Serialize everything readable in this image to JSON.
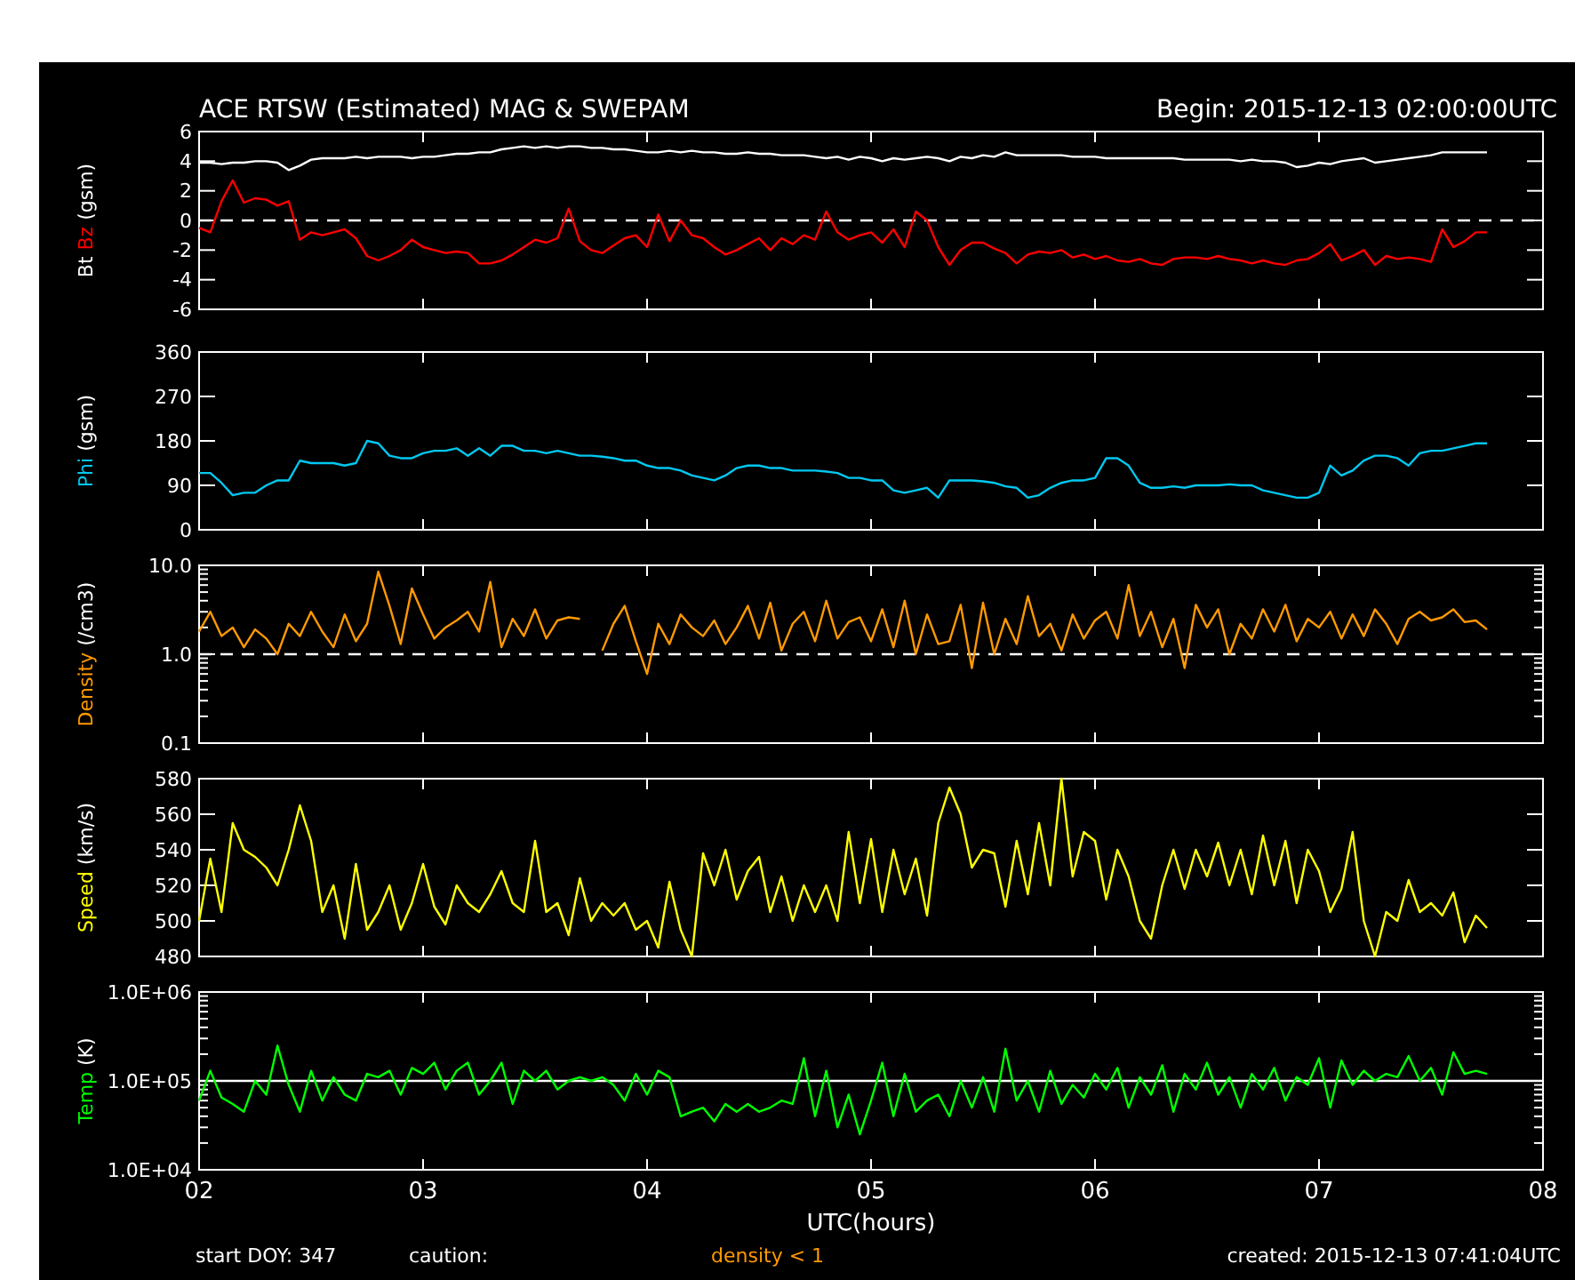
{
  "chart_data": [
    {
      "type": "line",
      "title": "ACE RTSW (Estimated) MAG & SWEPAM",
      "subtitle": "Begin: 2015-12-13 02:00:00UTC",
      "ylabel": "(gsm)",
      "tick_labels": "y",
      "x": [
        2,
        2.05,
        2.1,
        2.15,
        2.2,
        2.25,
        2.3,
        2.35,
        2.4,
        2.45,
        2.5,
        2.55,
        2.6,
        2.65,
        2.7,
        2.75,
        2.8,
        2.85,
        2.9,
        2.95,
        3,
        3.05,
        3.1,
        3.15,
        3.2,
        3.25,
        3.3,
        3.35,
        3.4,
        3.45,
        3.5,
        3.55,
        3.6,
        3.65,
        3.7,
        3.75,
        3.8,
        3.85,
        3.9,
        3.95,
        4,
        4.05,
        4.1,
        4.15,
        4.2,
        4.25,
        4.3,
        4.35,
        4.4,
        4.45,
        4.5,
        4.55,
        4.6,
        4.65,
        4.7,
        4.75,
        4.8,
        4.85,
        4.9,
        4.95,
        5,
        5.05,
        5.1,
        5.15,
        5.2,
        5.25,
        5.3,
        5.35,
        5.4,
        5.45,
        5.5,
        5.55,
        5.6,
        5.65,
        5.7,
        5.75,
        5.8,
        5.85,
        5.9,
        5.95,
        6,
        6.05,
        6.1,
        6.15,
        6.2,
        6.25,
        6.3,
        6.35,
        6.4,
        6.45,
        6.5,
        6.55,
        6.6,
        6.65,
        6.7,
        6.75,
        6.8,
        6.85,
        6.9,
        6.95,
        7,
        7.05,
        7.1,
        7.15,
        7.2,
        7.25,
        7.3,
        7.35,
        7.4,
        7.45,
        7.5,
        7.55,
        7.6,
        7.65,
        7.7,
        7.75
      ],
      "xlim": [
        2,
        8
      ],
      "xticks": [
        {
          "value": 2,
          "label": null
        },
        {
          "value": 3,
          "label": null
        },
        {
          "value": 4,
          "label": null
        },
        {
          "value": 5,
          "label": null
        },
        {
          "value": 6,
          "label": null
        },
        {
          "value": 7,
          "label": null
        },
        {
          "value": 8,
          "label": null
        }
      ],
      "ylim": [
        -6,
        6
      ],
      "yticks": [
        -6,
        -4,
        -2,
        0,
        2,
        4,
        6
      ],
      "ref_lines": [
        {
          "axis": "y",
          "value": 0,
          "line_style": "dashed",
          "color": "#ffffff"
        }
      ],
      "series": [
        {
          "name": "Bt",
          "color": "#ffffff",
          "values": [
            3.9,
            3.9,
            3.8,
            3.9,
            3.9,
            4.0,
            4.0,
            3.9,
            3.4,
            3.7,
            4.1,
            4.2,
            4.2,
            4.2,
            4.3,
            4.2,
            4.3,
            4.3,
            4.3,
            4.2,
            4.3,
            4.3,
            4.4,
            4.5,
            4.5,
            4.6,
            4.6,
            4.8,
            4.9,
            5.0,
            4.9,
            5.0,
            4.9,
            5.0,
            5.0,
            4.9,
            4.9,
            4.8,
            4.8,
            4.7,
            4.6,
            4.6,
            4.7,
            4.6,
            4.7,
            4.6,
            4.6,
            4.5,
            4.5,
            4.6,
            4.5,
            4.5,
            4.4,
            4.4,
            4.4,
            4.3,
            4.2,
            4.3,
            4.1,
            4.3,
            4.2,
            4.0,
            4.2,
            4.1,
            4.2,
            4.3,
            4.2,
            4.0,
            4.3,
            4.2,
            4.4,
            4.3,
            4.6,
            4.4,
            4.4,
            4.4,
            4.4,
            4.4,
            4.3,
            4.3,
            4.3,
            4.2,
            4.2,
            4.2,
            4.2,
            4.2,
            4.2,
            4.2,
            4.1,
            4.1,
            4.1,
            4.1,
            4.1,
            4.0,
            4.1,
            4.0,
            4.0,
            3.9,
            3.6,
            3.7,
            3.9,
            3.8,
            4.0,
            4.1,
            4.2,
            3.9,
            4.0,
            4.1,
            4.2,
            4.3,
            4.4,
            4.6,
            4.6,
            4.6,
            4.6,
            4.6
          ]
        },
        {
          "name": "Bz",
          "color": "#ff0000",
          "values": [
            -0.5,
            -0.8,
            1.3,
            2.7,
            1.2,
            1.5,
            1.4,
            1.0,
            1.3,
            -1.3,
            -0.8,
            -1.0,
            -0.8,
            -0.6,
            -1.2,
            -2.4,
            -2.7,
            -2.4,
            -2.0,
            -1.3,
            -1.8,
            -2.0,
            -2.2,
            -2.1,
            -2.2,
            -2.9,
            -2.9,
            -2.7,
            -2.3,
            -1.8,
            -1.3,
            -1.5,
            -1.2,
            0.8,
            -1.4,
            -2.0,
            -2.2,
            -1.7,
            -1.2,
            -1.0,
            -1.8,
            0.4,
            -1.4,
            0.0,
            -1.0,
            -1.2,
            -1.8,
            -2.3,
            -2.0,
            -1.6,
            -1.2,
            -2.0,
            -1.2,
            -1.6,
            -1.0,
            -1.3,
            0.6,
            -0.8,
            -1.3,
            -1.0,
            -0.8,
            -1.5,
            -0.6,
            -1.8,
            0.6,
            0.0,
            -1.8,
            -3.0,
            -2.0,
            -1.5,
            -1.5,
            -1.9,
            -2.2,
            -2.9,
            -2.3,
            -2.1,
            -2.2,
            -2.0,
            -2.5,
            -2.3,
            -2.6,
            -2.4,
            -2.7,
            -2.8,
            -2.6,
            -2.9,
            -3.0,
            -2.6,
            -2.5,
            -2.5,
            -2.6,
            -2.4,
            -2.6,
            -2.7,
            -2.9,
            -2.7,
            -2.9,
            -3.0,
            -2.7,
            -2.6,
            -2.2,
            -1.6,
            -2.7,
            -2.4,
            -2.0,
            -3.0,
            -2.4,
            -2.6,
            -2.5,
            -2.6,
            -2.8,
            -0.6,
            -1.8,
            -1.4,
            -0.8,
            -0.8
          ]
        }
      ]
    },
    {
      "type": "line",
      "ylabel": "(gsm)",
      "tick_labels": "y",
      "x": [
        2,
        2.05,
        2.1,
        2.15,
        2.2,
        2.25,
        2.3,
        2.35,
        2.4,
        2.45,
        2.5,
        2.55,
        2.6,
        2.65,
        2.7,
        2.75,
        2.8,
        2.85,
        2.9,
        2.95,
        3,
        3.05,
        3.1,
        3.15,
        3.2,
        3.25,
        3.3,
        3.35,
        3.4,
        3.45,
        3.5,
        3.55,
        3.6,
        3.65,
        3.7,
        3.75,
        3.8,
        3.85,
        3.9,
        3.95,
        4,
        4.05,
        4.1,
        4.15,
        4.2,
        4.25,
        4.3,
        4.35,
        4.4,
        4.45,
        4.5,
        4.55,
        4.6,
        4.65,
        4.7,
        4.75,
        4.8,
        4.85,
        4.9,
        4.95,
        5,
        5.05,
        5.1,
        5.15,
        5.2,
        5.25,
        5.3,
        5.35,
        5.4,
        5.45,
        5.5,
        5.55,
        5.6,
        5.65,
        5.7,
        5.75,
        5.8,
        5.85,
        5.9,
        5.95,
        6,
        6.05,
        6.1,
        6.15,
        6.2,
        6.25,
        6.3,
        6.35,
        6.4,
        6.45,
        6.5,
        6.55,
        6.6,
        6.65,
        6.7,
        6.75,
        6.8,
        6.85,
        6.9,
        6.95,
        7,
        7.05,
        7.1,
        7.15,
        7.2,
        7.25,
        7.3,
        7.35,
        7.4,
        7.45,
        7.5,
        7.55,
        7.6,
        7.65,
        7.7,
        7.75
      ],
      "xlim": [
        2,
        8
      ],
      "xticks": [
        {
          "value": 2,
          "label": null
        },
        {
          "value": 3,
          "label": null
        },
        {
          "value": 4,
          "label": null
        },
        {
          "value": 5,
          "label": null
        },
        {
          "value": 6,
          "label": null
        },
        {
          "value": 7,
          "label": null
        },
        {
          "value": 8,
          "label": null
        }
      ],
      "ylim": [
        0,
        360
      ],
      "yticks": [
        0,
        90,
        180,
        270,
        360
      ],
      "series": [
        {
          "name": "Phi",
          "color": "#00c8f0",
          "values": [
            115,
            115,
            95,
            70,
            75,
            75,
            90,
            100,
            100,
            140,
            135,
            135,
            135,
            130,
            135,
            180,
            175,
            150,
            145,
            145,
            155,
            160,
            160,
            165,
            150,
            165,
            150,
            170,
            170,
            160,
            160,
            155,
            160,
            155,
            150,
            150,
            148,
            145,
            140,
            140,
            130,
            125,
            125,
            120,
            110,
            105,
            100,
            110,
            125,
            130,
            130,
            125,
            125,
            120,
            120,
            120,
            118,
            115,
            105,
            105,
            100,
            100,
            80,
            75,
            80,
            85,
            65,
            100,
            100,
            100,
            98,
            95,
            88,
            85,
            65,
            70,
            85,
            95,
            100,
            100,
            105,
            145,
            145,
            130,
            95,
            85,
            85,
            88,
            85,
            90,
            90,
            90,
            92,
            90,
            90,
            80,
            75,
            70,
            65,
            65,
            75,
            130,
            110,
            120,
            140,
            150,
            150,
            145,
            130,
            155,
            160,
            160,
            165,
            170,
            175,
            175
          ]
        }
      ]
    },
    {
      "type": "line",
      "ylabel": "(/cm3)",
      "tick_labels": "y",
      "log": true,
      "x": [
        2,
        2.05,
        2.1,
        2.15,
        2.2,
        2.25,
        2.3,
        2.35,
        2.4,
        2.45,
        2.5,
        2.55,
        2.6,
        2.65,
        2.7,
        2.75,
        2.8,
        2.85,
        2.9,
        2.95,
        3,
        3.05,
        3.1,
        3.15,
        3.2,
        3.25,
        3.3,
        3.35,
        3.4,
        3.45,
        3.5,
        3.55,
        3.6,
        3.65,
        3.7,
        3.75,
        3.8,
        3.85,
        3.9,
        3.95,
        4,
        4.05,
        4.1,
        4.15,
        4.2,
        4.25,
        4.3,
        4.35,
        4.4,
        4.45,
        4.5,
        4.55,
        4.6,
        4.65,
        4.7,
        4.75,
        4.8,
        4.85,
        4.9,
        4.95,
        5,
        5.05,
        5.1,
        5.15,
        5.2,
        5.25,
        5.3,
        5.35,
        5.4,
        5.45,
        5.5,
        5.55,
        5.6,
        5.65,
        5.7,
        5.75,
        5.8,
        5.85,
        5.9,
        5.95,
        6,
        6.05,
        6.1,
        6.15,
        6.2,
        6.25,
        6.3,
        6.35,
        6.4,
        6.45,
        6.5,
        6.55,
        6.6,
        6.65,
        6.7,
        6.75,
        6.8,
        6.85,
        6.9,
        6.95,
        7,
        7.05,
        7.1,
        7.15,
        7.2,
        7.25,
        7.3,
        7.35,
        7.4,
        7.45,
        7.5,
        7.55,
        7.6,
        7.65,
        7.7,
        7.75
      ],
      "xlim": [
        2,
        8
      ],
      "xticks": [
        {
          "value": 2,
          "label": null
        },
        {
          "value": 3,
          "label": null
        },
        {
          "value": 4,
          "label": null
        },
        {
          "value": 5,
          "label": null
        },
        {
          "value": 6,
          "label": null
        },
        {
          "value": 7,
          "label": null
        },
        {
          "value": 8,
          "label": null
        }
      ],
      "ylim": [
        0.1,
        10
      ],
      "yticks": [
        {
          "value": 0.1,
          "label": "0.1"
        },
        {
          "value": 0.2,
          "label": null
        },
        {
          "value": 0.3,
          "label": null
        },
        {
          "value": 0.4,
          "label": null
        },
        {
          "value": 0.5,
          "label": null
        },
        {
          "value": 0.6,
          "label": null
        },
        {
          "value": 0.7,
          "label": null
        },
        {
          "value": 0.8,
          "label": null
        },
        {
          "value": 0.9,
          "label": null
        },
        {
          "value": 1,
          "label": "1.0"
        },
        {
          "value": 2,
          "label": null
        },
        {
          "value": 3,
          "label": null
        },
        {
          "value": 4,
          "label": null
        },
        {
          "value": 5,
          "label": null
        },
        {
          "value": 6,
          "label": null
        },
        {
          "value": 7,
          "label": null
        },
        {
          "value": 8,
          "label": null
        },
        {
          "value": 9,
          "label": null
        },
        {
          "value": 10,
          "label": "10.0"
        }
      ],
      "ref_lines": [
        {
          "axis": "y",
          "value": 1,
          "line_style": "dashed",
          "color": "#ffffff"
        }
      ],
      "series": [
        {
          "name": "Density",
          "color": "#ff9900",
          "values": [
            1.8,
            3.0,
            1.6,
            2.0,
            1.2,
            1.9,
            1.5,
            1.0,
            2.2,
            1.6,
            3.0,
            1.8,
            1.2,
            2.8,
            1.4,
            2.2,
            8.5,
            3.5,
            1.3,
            5.5,
            2.8,
            1.5,
            2.0,
            2.4,
            3.0,
            1.8,
            6.5,
            1.2,
            2.5,
            1.6,
            3.2,
            1.5,
            2.4,
            2.6,
            2.5,
            null,
            1.1,
            2.2,
            3.5,
            1.4,
            0.6,
            2.2,
            1.3,
            2.8,
            2.0,
            1.6,
            2.4,
            1.3,
            2.0,
            3.5,
            1.5,
            3.8,
            1.1,
            2.2,
            3.0,
            1.4,
            4.0,
            1.5,
            2.3,
            2.6,
            1.4,
            3.2,
            1.2,
            4.0,
            1.0,
            2.8,
            1.3,
            1.4,
            3.6,
            0.7,
            3.8,
            1.0,
            2.5,
            1.3,
            4.5,
            1.6,
            2.2,
            1.1,
            2.8,
            1.5,
            2.4,
            3.0,
            1.5,
            6.0,
            1.6,
            3.0,
            1.2,
            2.5,
            0.7,
            3.6,
            2.0,
            3.2,
            1.0,
            2.2,
            1.5,
            3.2,
            1.8,
            3.6,
            1.4,
            2.5,
            2.0,
            3.0,
            1.5,
            2.8,
            1.6,
            3.2,
            2.2,
            1.3,
            2.5,
            3.0,
            2.4,
            2.6,
            3.2,
            2.3,
            2.4,
            1.9
          ]
        }
      ]
    },
    {
      "type": "line",
      "ylabel": "(km/s)",
      "tick_labels": "y",
      "x": [
        2,
        2.05,
        2.1,
        2.15,
        2.2,
        2.25,
        2.3,
        2.35,
        2.4,
        2.45,
        2.5,
        2.55,
        2.6,
        2.65,
        2.7,
        2.75,
        2.8,
        2.85,
        2.9,
        2.95,
        3,
        3.05,
        3.1,
        3.15,
        3.2,
        3.25,
        3.3,
        3.35,
        3.4,
        3.45,
        3.5,
        3.55,
        3.6,
        3.65,
        3.7,
        3.75,
        3.8,
        3.85,
        3.9,
        3.95,
        4,
        4.05,
        4.1,
        4.15,
        4.2,
        4.25,
        4.3,
        4.35,
        4.4,
        4.45,
        4.5,
        4.55,
        4.6,
        4.65,
        4.7,
        4.75,
        4.8,
        4.85,
        4.9,
        4.95,
        5,
        5.05,
        5.1,
        5.15,
        5.2,
        5.25,
        5.3,
        5.35,
        5.4,
        5.45,
        5.5,
        5.55,
        5.6,
        5.65,
        5.7,
        5.75,
        5.8,
        5.85,
        5.9,
        5.95,
        6,
        6.05,
        6.1,
        6.15,
        6.2,
        6.25,
        6.3,
        6.35,
        6.4,
        6.45,
        6.5,
        6.55,
        6.6,
        6.65,
        6.7,
        6.75,
        6.8,
        6.85,
        6.9,
        6.95,
        7,
        7.05,
        7.1,
        7.15,
        7.2,
        7.25,
        7.3,
        7.35,
        7.4,
        7.45,
        7.5,
        7.55,
        7.6,
        7.65,
        7.7,
        7.75
      ],
      "xlim": [
        2,
        8
      ],
      "xticks": [
        {
          "value": 2,
          "label": null
        },
        {
          "value": 3,
          "label": null
        },
        {
          "value": 4,
          "label": null
        },
        {
          "value": 5,
          "label": null
        },
        {
          "value": 6,
          "label": null
        },
        {
          "value": 7,
          "label": null
        },
        {
          "value": 8,
          "label": null
        }
      ],
      "ylim": [
        480,
        580
      ],
      "yticks": [
        480,
        500,
        520,
        540,
        560,
        580
      ],
      "series": [
        {
          "name": "Speed",
          "color": "#ffff00",
          "values": [
            500,
            535,
            505,
            555,
            540,
            536,
            530,
            520,
            540,
            565,
            545,
            505,
            520,
            490,
            532,
            495,
            505,
            520,
            495,
            510,
            532,
            508,
            498,
            520,
            510,
            505,
            515,
            528,
            510,
            505,
            545,
            505,
            510,
            492,
            524,
            500,
            510,
            503,
            510,
            495,
            500,
            485,
            522,
            495,
            480,
            538,
            520,
            540,
            512,
            528,
            536,
            505,
            525,
            500,
            520,
            505,
            520,
            500,
            550,
            510,
            546,
            505,
            540,
            515,
            535,
            503,
            555,
            575,
            560,
            530,
            540,
            538,
            508,
            545,
            515,
            555,
            520,
            580,
            525,
            550,
            545,
            512,
            540,
            525,
            500,
            490,
            520,
            540,
            518,
            540,
            525,
            544,
            520,
            540,
            515,
            548,
            520,
            545,
            510,
            540,
            528,
            505,
            518,
            550,
            500,
            480,
            505,
            500,
            523,
            505,
            510,
            503,
            516,
            488,
            503,
            496
          ]
        }
      ]
    },
    {
      "type": "line",
      "ylabel": "(K)",
      "xlabel": "UTC(hours)",
      "log": true,
      "annotations": [
        "start DOY: 347",
        "caution:",
        "density < 1",
        "created: 2015-12-13 07:41:04UTC"
      ],
      "x": [
        2,
        2.05,
        2.1,
        2.15,
        2.2,
        2.25,
        2.3,
        2.35,
        2.4,
        2.45,
        2.5,
        2.55,
        2.6,
        2.65,
        2.7,
        2.75,
        2.8,
        2.85,
        2.9,
        2.95,
        3,
        3.05,
        3.1,
        3.15,
        3.2,
        3.25,
        3.3,
        3.35,
        3.4,
        3.45,
        3.5,
        3.55,
        3.6,
        3.65,
        3.7,
        3.75,
        3.8,
        3.85,
        3.9,
        3.95,
        4,
        4.05,
        4.1,
        4.15,
        4.2,
        4.25,
        4.3,
        4.35,
        4.4,
        4.45,
        4.5,
        4.55,
        4.6,
        4.65,
        4.7,
        4.75,
        4.8,
        4.85,
        4.9,
        4.95,
        5,
        5.05,
        5.1,
        5.15,
        5.2,
        5.25,
        5.3,
        5.35,
        5.4,
        5.45,
        5.5,
        5.55,
        5.6,
        5.65,
        5.7,
        5.75,
        5.8,
        5.85,
        5.9,
        5.95,
        6,
        6.05,
        6.1,
        6.15,
        6.2,
        6.25,
        6.3,
        6.35,
        6.4,
        6.45,
        6.5,
        6.55,
        6.6,
        6.65,
        6.7,
        6.75,
        6.8,
        6.85,
        6.9,
        6.95,
        7,
        7.05,
        7.1,
        7.15,
        7.2,
        7.25,
        7.3,
        7.35,
        7.4,
        7.45,
        7.5,
        7.55,
        7.6,
        7.65,
        7.7,
        7.75
      ],
      "xlim": [
        2,
        8
      ],
      "xticks": [
        {
          "value": 2,
          "label": "02"
        },
        {
          "value": 3,
          "label": "03"
        },
        {
          "value": 4,
          "label": "04"
        },
        {
          "value": 5,
          "label": "05"
        },
        {
          "value": 6,
          "label": "06"
        },
        {
          "value": 7,
          "label": "07"
        },
        {
          "value": 8,
          "label": "08"
        }
      ],
      "ylim": [
        10000,
        1000000
      ],
      "yticks": [
        {
          "value": 10000,
          "label": "1.0E+04"
        },
        {
          "value": 20000,
          "label": null
        },
        {
          "value": 30000,
          "label": null
        },
        {
          "value": 40000,
          "label": null
        },
        {
          "value": 50000,
          "label": null
        },
        {
          "value": 60000,
          "label": null
        },
        {
          "value": 70000,
          "label": null
        },
        {
          "value": 80000,
          "label": null
        },
        {
          "value": 90000,
          "label": null
        },
        {
          "value": 100000,
          "label": "1.0E+05"
        },
        {
          "value": 200000,
          "label": null
        },
        {
          "value": 300000,
          "label": null
        },
        {
          "value": 400000,
          "label": null
        },
        {
          "value": 500000,
          "label": null
        },
        {
          "value": 600000,
          "label": null
        },
        {
          "value": 700000,
          "label": null
        },
        {
          "value": 800000,
          "label": null
        },
        {
          "value": 900000,
          "label": null
        },
        {
          "value": 1000000,
          "label": "1.0E+06"
        }
      ],
      "ref_lines": [
        {
          "axis": "y",
          "value": 100000,
          "line_style": "solid",
          "color": "#ffffff"
        }
      ],
      "series": [
        {
          "name": "Temp",
          "color": "#00ff00",
          "values": [
            60000,
            130000,
            65000,
            55000,
            45000,
            100000,
            70000,
            250000,
            90000,
            45000,
            130000,
            60000,
            110000,
            70000,
            60000,
            120000,
            110000,
            130000,
            70000,
            140000,
            120000,
            160000,
            80000,
            130000,
            160000,
            70000,
            100000,
            160000,
            55000,
            130000,
            100000,
            130000,
            80000,
            100000,
            110000,
            100000,
            110000,
            90000,
            60000,
            120000,
            70000,
            130000,
            110000,
            40000,
            45000,
            50000,
            35000,
            55000,
            45000,
            55000,
            45000,
            50000,
            60000,
            55000,
            180000,
            40000,
            130000,
            30000,
            70000,
            25000,
            60000,
            160000,
            40000,
            120000,
            45000,
            60000,
            70000,
            40000,
            100000,
            50000,
            110000,
            45000,
            230000,
            60000,
            100000,
            45000,
            130000,
            55000,
            90000,
            65000,
            120000,
            80000,
            140000,
            50000,
            110000,
            70000,
            150000,
            45000,
            120000,
            80000,
            160000,
            70000,
            110000,
            50000,
            120000,
            80000,
            140000,
            60000,
            110000,
            90000,
            180000,
            50000,
            170000,
            90000,
            130000,
            100000,
            120000,
            110000,
            190000,
            100000,
            140000,
            70000,
            210000,
            120000,
            130000,
            120000
          ]
        }
      ]
    }
  ]
}
